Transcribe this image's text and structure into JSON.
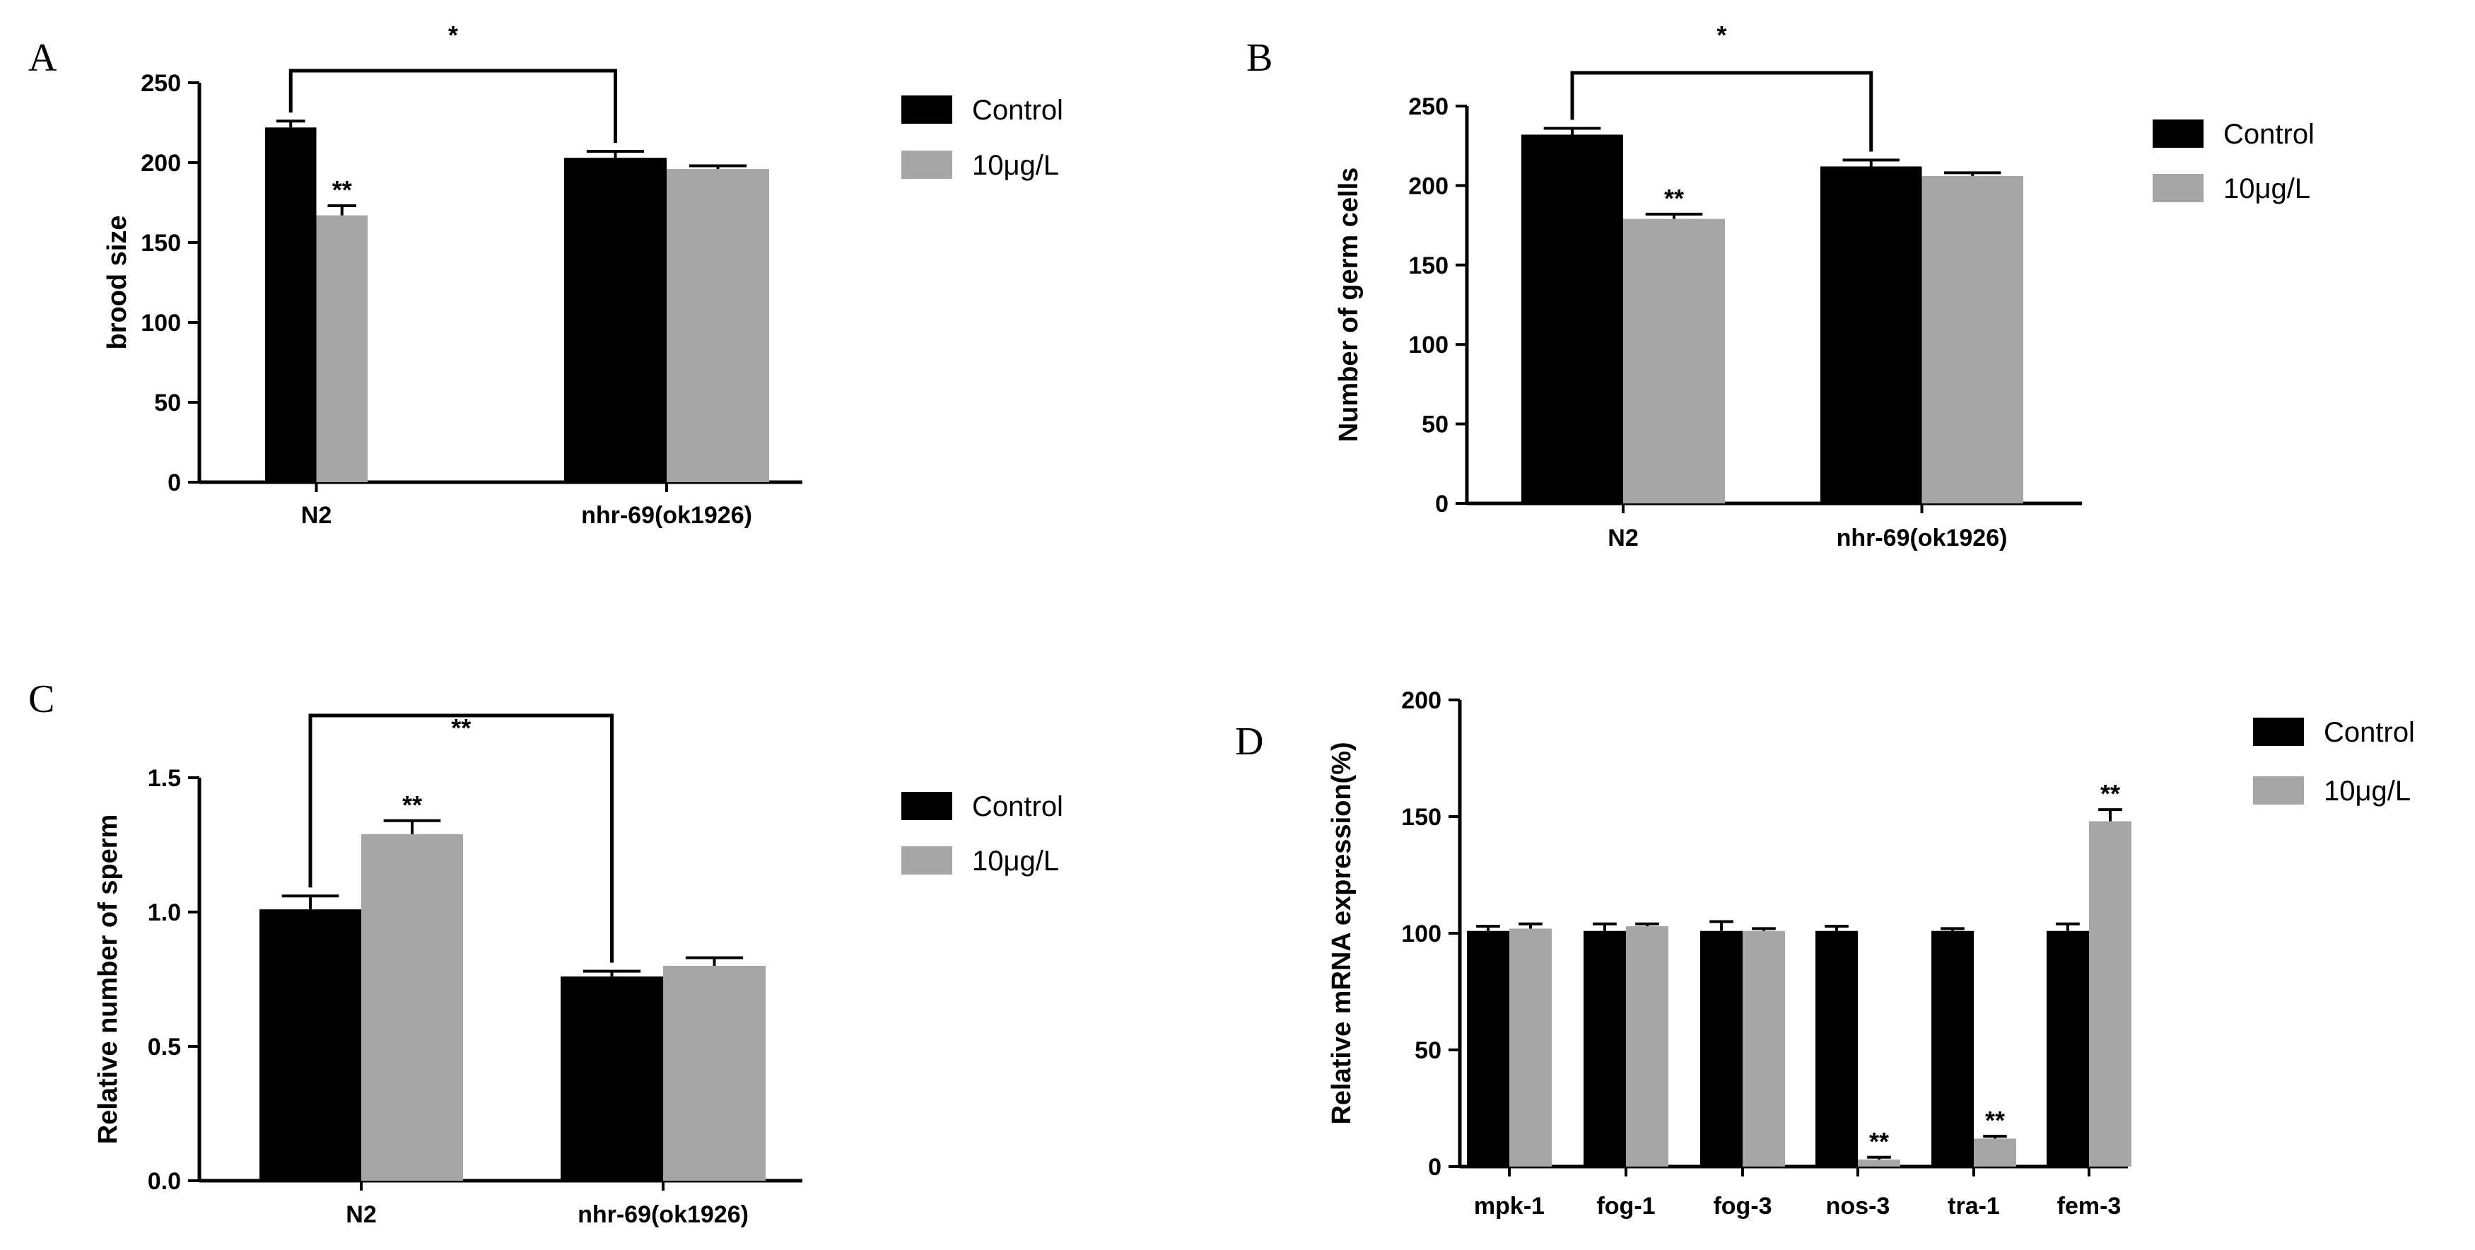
{
  "chart_data": [
    {
      "panel": "A",
      "type": "bar",
      "ylabel": "brood size",
      "ylim": [
        0,
        250
      ],
      "yticks": [
        0,
        50,
        100,
        150,
        200,
        250
      ],
      "tick_format": "int",
      "categories": [
        "N2",
        "nhr-69(ok1926)"
      ],
      "series": [
        {
          "name": "Control",
          "color": "#000000",
          "values": [
            222,
            203
          ],
          "errors": [
            4,
            4
          ]
        },
        {
          "name": "10μg/L",
          "color": "#a6a6a6",
          "values": [
            167,
            196
          ],
          "errors": [
            6,
            2
          ]
        }
      ],
      "annotations": [
        {
          "category": 0,
          "series": 1,
          "text": "**"
        }
      ],
      "bracket": {
        "from_category": 0,
        "to_category": 1,
        "text": "*"
      },
      "legend": "right"
    },
    {
      "panel": "B",
      "type": "bar",
      "ylabel": "Number of germ cells",
      "ylim": [
        0,
        250
      ],
      "yticks": [
        0,
        50,
        100,
        150,
        200,
        250
      ],
      "tick_format": "int",
      "categories": [
        "N2",
        "nhr-69(ok1926)"
      ],
      "series": [
        {
          "name": "Control",
          "color": "#000000",
          "values": [
            232,
            212
          ],
          "errors": [
            4,
            4
          ]
        },
        {
          "name": "10μg/L",
          "color": "#a6a6a6",
          "values": [
            179,
            206
          ],
          "errors": [
            3,
            2
          ]
        }
      ],
      "annotations": [
        {
          "category": 0,
          "series": 1,
          "text": "**"
        }
      ],
      "bracket": {
        "from_category": 0,
        "to_category": 1,
        "text": "*"
      },
      "legend": "right"
    },
    {
      "panel": "C",
      "type": "bar",
      "ylabel": "Relative number of sperm",
      "ylim": [
        0,
        1.5
      ],
      "yticks": [
        0,
        0.5,
        1.0,
        1.5
      ],
      "tick_format": "1dp",
      "categories": [
        "N2",
        "nhr-69(ok1926)"
      ],
      "series": [
        {
          "name": "Control",
          "color": "#000000",
          "values": [
            1.01,
            0.76
          ],
          "errors": [
            0.05,
            0.02
          ]
        },
        {
          "name": "10μg/L",
          "color": "#a6a6a6",
          "values": [
            1.29,
            0.8
          ],
          "errors": [
            0.05,
            0.03
          ]
        }
      ],
      "annotations": [
        {
          "category": 0,
          "series": 1,
          "text": "**"
        }
      ],
      "bracket": {
        "from_category": 0,
        "to_category": 1,
        "text": "**"
      },
      "legend": "right"
    },
    {
      "panel": "D",
      "type": "bar",
      "ylabel": "Relative mRNA expression(%)",
      "ylim": [
        0,
        200
      ],
      "yticks": [
        0,
        50,
        100,
        150,
        200
      ],
      "tick_format": "int",
      "categories": [
        "mpk-1",
        "fog-1",
        "fog-3",
        "nos-3",
        "tra-1",
        "fem-3"
      ],
      "series": [
        {
          "name": "Control",
          "color": "#000000",
          "values": [
            101,
            101,
            101,
            101,
            101,
            101
          ],
          "errors": [
            2,
            3,
            4,
            2,
            1,
            3
          ]
        },
        {
          "name": "10μg/L",
          "color": "#a6a6a6",
          "values": [
            102,
            103,
            101,
            3,
            12,
            148
          ],
          "errors": [
            2,
            1,
            1,
            1,
            1,
            5
          ]
        }
      ],
      "annotations": [
        {
          "category": 3,
          "series": 1,
          "text": "**"
        },
        {
          "category": 4,
          "series": 1,
          "text": "**"
        },
        {
          "category": 5,
          "series": 1,
          "text": "**"
        }
      ],
      "legend": "right"
    }
  ]
}
